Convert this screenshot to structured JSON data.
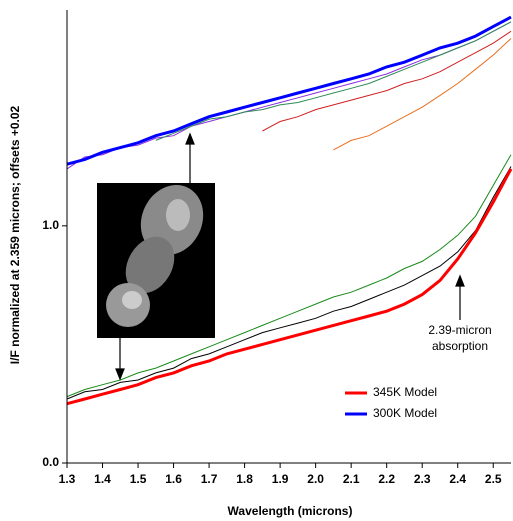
{
  "chart_data": {
    "type": "line",
    "xlabel": "Wavelength (microns)",
    "ylabel": "I/F normalized at 2.359 microns; offsets +0.02",
    "x": [
      1.3,
      1.35,
      1.4,
      1.45,
      1.5,
      1.55,
      1.6,
      1.65,
      1.7,
      1.75,
      1.8,
      1.85,
      1.9,
      1.95,
      2.0,
      2.05,
      2.1,
      2.15,
      2.2,
      2.25,
      2.3,
      2.35,
      2.4,
      2.45,
      2.5,
      2.55
    ],
    "xlim": [
      1.3,
      2.55
    ],
    "ylim": [
      0,
      1.91
    ],
    "xticks": [
      1.3,
      1.4,
      1.5,
      1.6,
      1.7,
      1.8,
      1.9,
      {
        "value": 2,
        "label": "2.0"
      },
      2.1,
      2.2,
      2.3,
      2.4,
      2.5
    ],
    "yticks": [
      {
        "value": 0,
        "label": "0.0"
      },
      {
        "value": 1,
        "label": "1.0"
      }
    ],
    "legend_position": "lower right",
    "annotation": [
      "2.39-micron",
      "absorption"
    ],
    "series": [
      {
        "color": "#000000",
        "values": [
          0.27,
          0.3,
          0.31,
          0.34,
          0.35,
          0.38,
          0.4,
          0.44,
          0.46,
          0.49,
          0.52,
          0.55,
          0.57,
          0.59,
          0.61,
          0.64,
          0.66,
          0.69,
          0.72,
          0.75,
          0.79,
          0.83,
          0.89,
          0.98,
          1.12,
          1.25
        ]
      },
      {
        "color": "#1a8a1a",
        "values": [
          0.28,
          0.31,
          0.33,
          0.35,
          0.38,
          0.4,
          0.43,
          0.46,
          0.49,
          0.52,
          0.55,
          0.58,
          0.61,
          0.64,
          0.67,
          0.7,
          0.72,
          0.75,
          0.78,
          0.82,
          0.85,
          0.9,
          0.96,
          1.04,
          1.17,
          1.3
        ]
      },
      {
        "color": "#8a2be2",
        "values": [
          1.24,
          1.29,
          1.3,
          1.33,
          1.34,
          1.37,
          1.38,
          1.42,
          1.44,
          1.46,
          1.48,
          1.5,
          1.52,
          1.54,
          1.56,
          1.58,
          1.6,
          1.62,
          1.64,
          1.67,
          1.7,
          1.72,
          1.75,
          1.78,
          1.82,
          1.86
        ]
      },
      {
        "color": "#2e8b57",
        "values": [
          null,
          null,
          null,
          null,
          null,
          1.36,
          1.39,
          1.42,
          1.45,
          1.46,
          1.48,
          1.49,
          1.51,
          1.52,
          1.54,
          1.56,
          1.58,
          1.6,
          1.63,
          1.66,
          1.69,
          1.72,
          1.75,
          1.78,
          1.82,
          1.86
        ]
      },
      {
        "color": "#e87020",
        "values": [
          null,
          null,
          null,
          null,
          null,
          null,
          null,
          null,
          null,
          null,
          null,
          null,
          null,
          null,
          null,
          1.32,
          1.36,
          1.38,
          1.42,
          1.46,
          1.5,
          1.55,
          1.6,
          1.66,
          1.72,
          1.79
        ]
      },
      {
        "color": "#d02020",
        "values": [
          null,
          null,
          null,
          null,
          null,
          null,
          null,
          null,
          null,
          null,
          null,
          1.4,
          1.44,
          1.46,
          1.49,
          1.51,
          1.53,
          1.55,
          1.57,
          1.6,
          1.62,
          1.65,
          1.69,
          1.73,
          1.77,
          1.82
        ]
      },
      {
        "name": "345K Model",
        "color": "#ff0000",
        "width": 3,
        "values": [
          0.25,
          0.27,
          0.29,
          0.31,
          0.33,
          0.36,
          0.38,
          0.41,
          0.43,
          0.46,
          0.48,
          0.5,
          0.52,
          0.54,
          0.56,
          0.58,
          0.6,
          0.62,
          0.64,
          0.67,
          0.71,
          0.77,
          0.86,
          0.97,
          1.1,
          1.24
        ]
      },
      {
        "name": "300K Model",
        "color": "#0000ff",
        "width": 3,
        "values": [
          1.26,
          1.28,
          1.31,
          1.33,
          1.35,
          1.38,
          1.4,
          1.43,
          1.46,
          1.48,
          1.5,
          1.52,
          1.54,
          1.56,
          1.58,
          1.6,
          1.62,
          1.64,
          1.67,
          1.69,
          1.72,
          1.75,
          1.77,
          1.8,
          1.84,
          1.88
        ]
      }
    ]
  }
}
